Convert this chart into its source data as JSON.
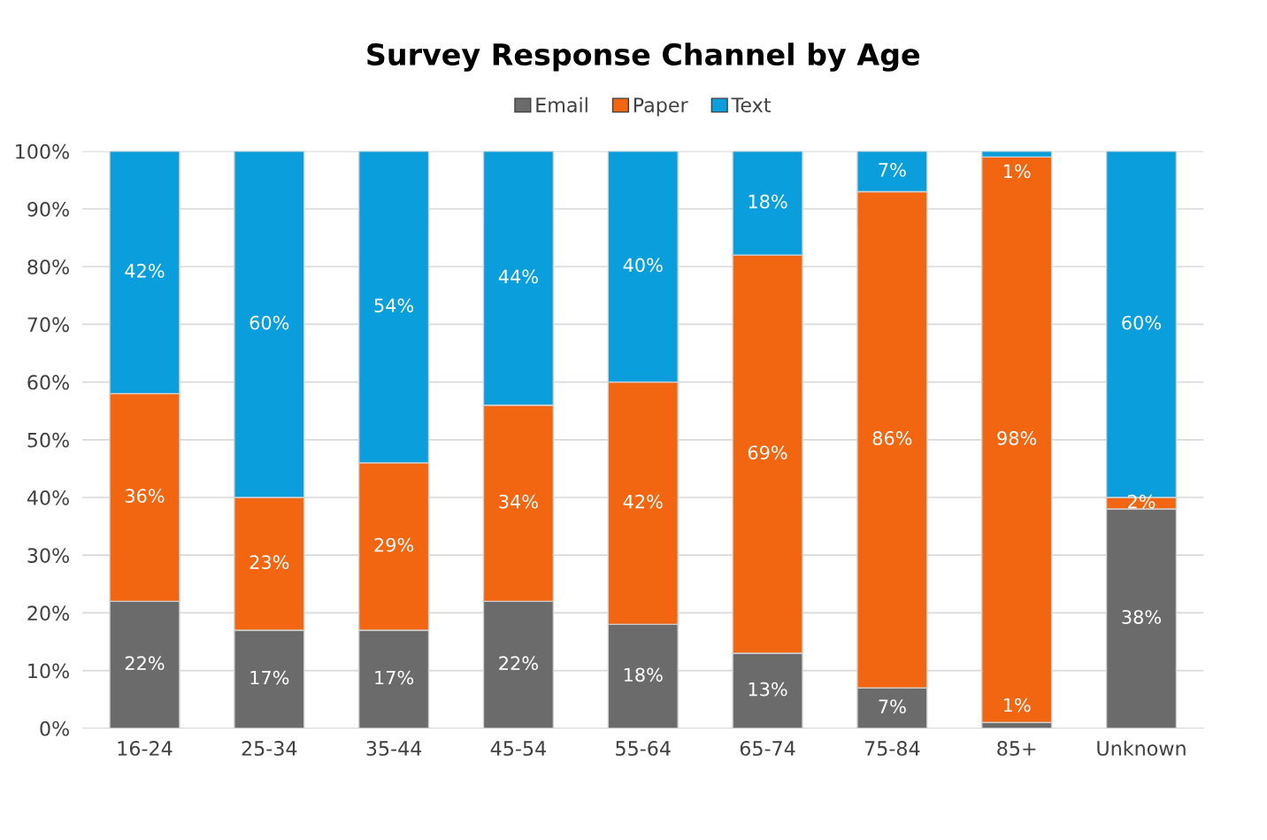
{
  "chart_data": {
    "type": "bar",
    "stacked": true,
    "title": "Survey Response Channel by Age",
    "categories": [
      "16-24",
      "25-34",
      "35-44",
      "45-54",
      "55-64",
      "65-74",
      "75-84",
      "85+",
      "Unknown"
    ],
    "series": [
      {
        "name": "Email",
        "color": "#6b6b6b",
        "values": [
          22,
          17,
          17,
          22,
          18,
          13,
          7,
          1,
          38
        ],
        "value_labels": [
          "22%",
          "17%",
          "17%",
          "22%",
          "18%",
          "13%",
          "7%",
          "1%",
          "38%"
        ]
      },
      {
        "name": "Paper",
        "color": "#f26511",
        "values": [
          36,
          23,
          29,
          34,
          42,
          69,
          86,
          98,
          2
        ],
        "value_labels": [
          "36%",
          "23%",
          "29%",
          "34%",
          "42%",
          "69%",
          "86%",
          "98%",
          "2%"
        ]
      },
      {
        "name": "Text",
        "color": "#0a9fdc",
        "values": [
          42,
          60,
          54,
          44,
          40,
          18,
          7,
          1,
          60
        ],
        "value_labels": [
          "42%",
          "60%",
          "54%",
          "44%",
          "40%",
          "18%",
          "7%",
          "1%",
          "60%"
        ]
      }
    ],
    "ylim": [
      0,
      100
    ],
    "yticks": [
      {
        "value": 0,
        "label": "0%"
      },
      {
        "value": 10,
        "label": "10%"
      },
      {
        "value": 20,
        "label": "20%"
      },
      {
        "value": 30,
        "label": "30%"
      },
      {
        "value": 40,
        "label": "40%"
      },
      {
        "value": 50,
        "label": "50%"
      },
      {
        "value": 60,
        "label": "60%"
      },
      {
        "value": 70,
        "label": "70%"
      },
      {
        "value": 80,
        "label": "80%"
      },
      {
        "value": 90,
        "label": "90%"
      },
      {
        "value": 100,
        "label": "100%"
      }
    ],
    "grid": "y",
    "legend": "top"
  }
}
